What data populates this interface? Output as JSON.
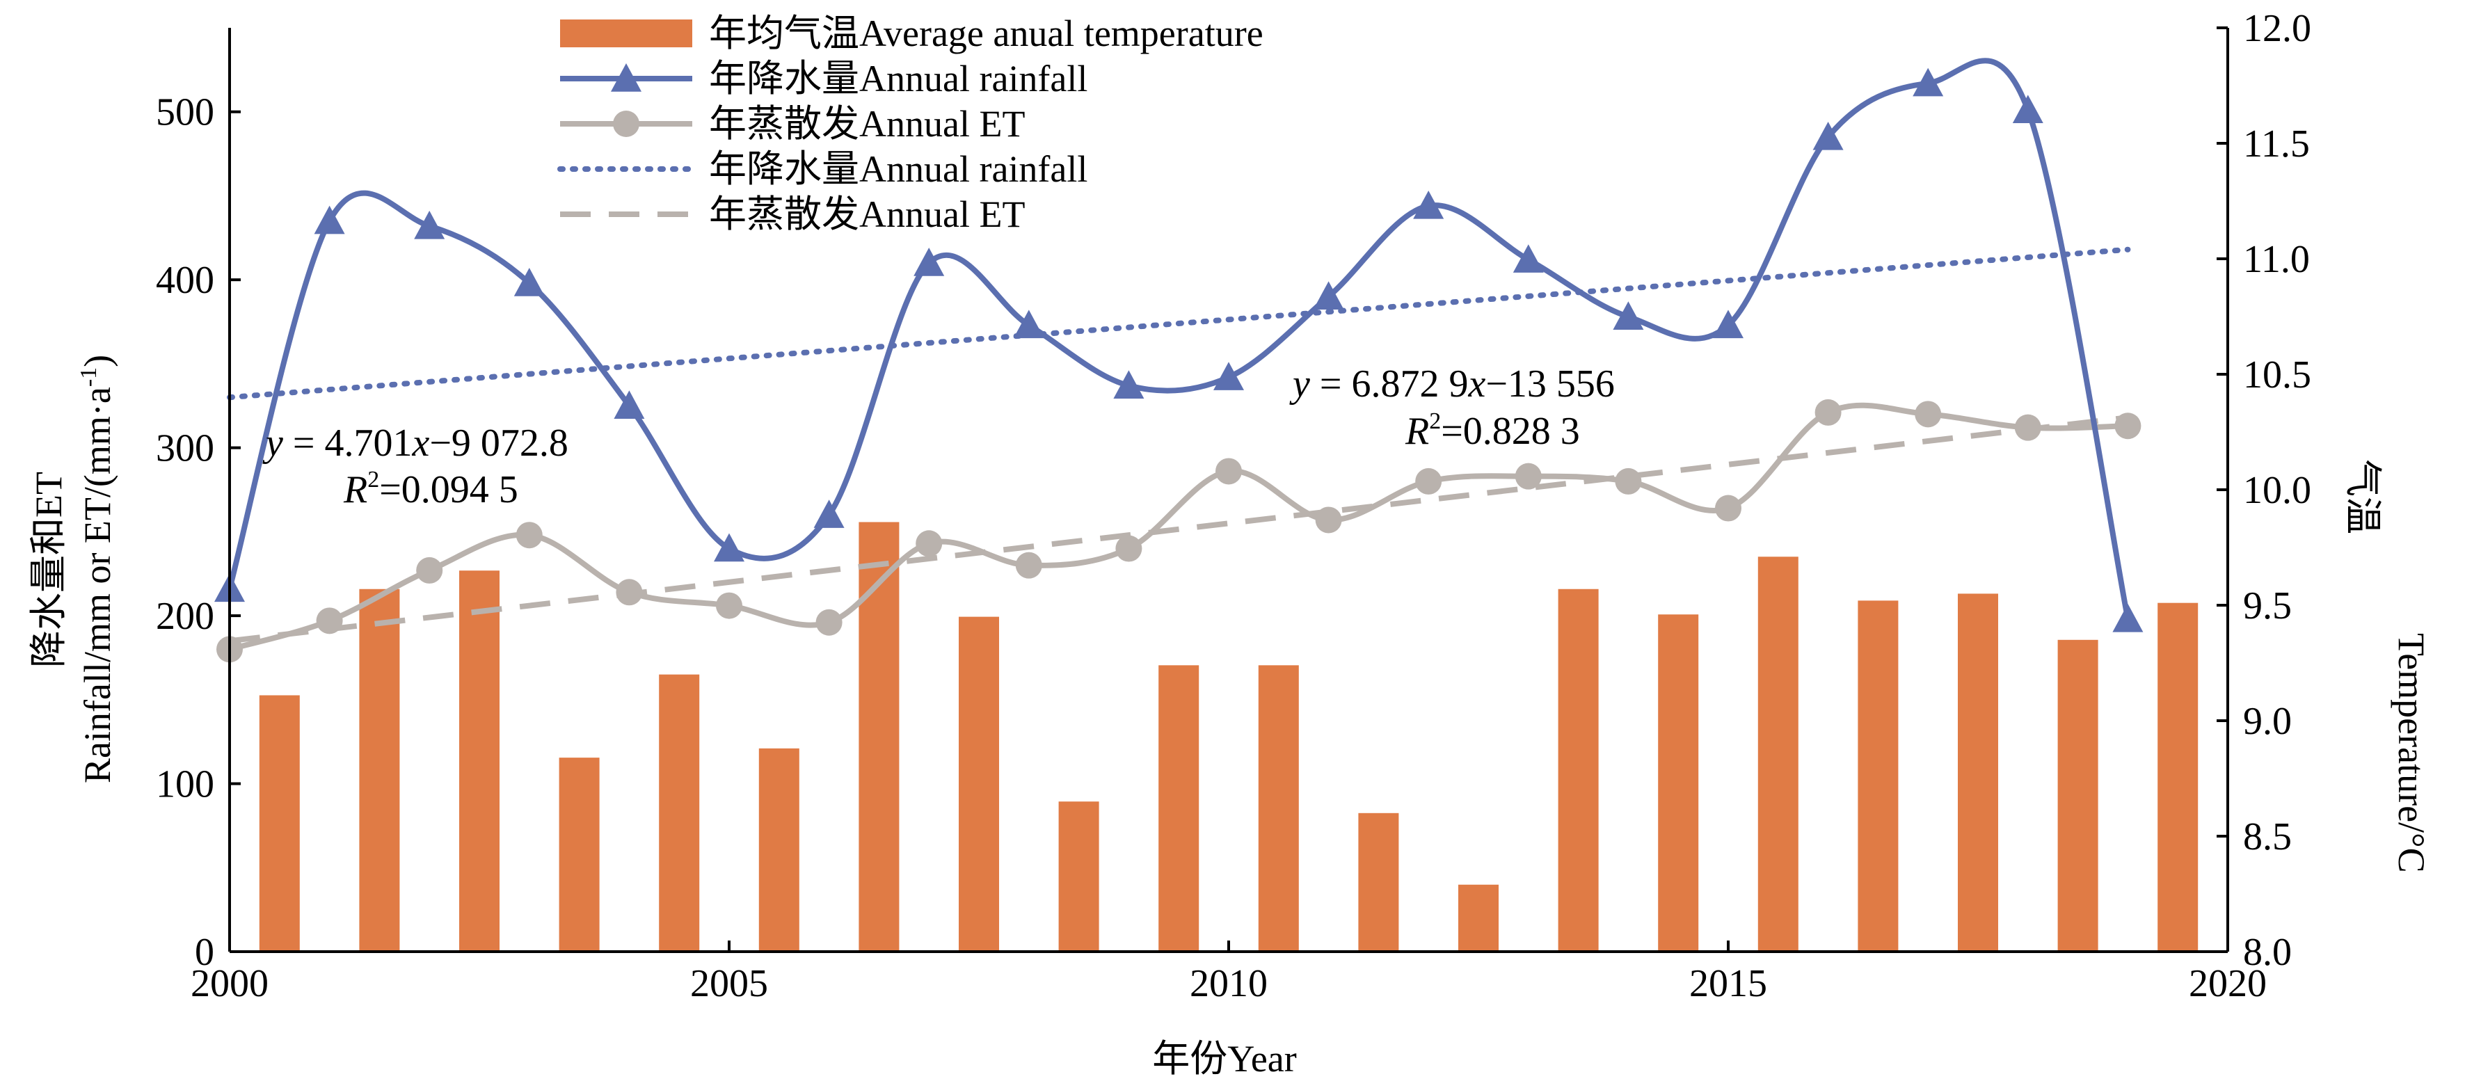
{
  "chart_data": {
    "type": "bar+line",
    "x_label": "年份Year",
    "y_left_label_cn": "降水量和ET",
    "y_left_label_en": "Rainfall/mm or ET/(mm·a",
    "y_left_label_sup": "-1",
    "y_left_label_end": ")",
    "y_right_label_cn": "气温",
    "y_right_label_en": "Temperature/°C",
    "x_range": [
      2000,
      2020
    ],
    "x_ticks": [
      "2000",
      "2005",
      "2010",
      "2015",
      "2020"
    ],
    "y_left_range": [
      0,
      550
    ],
    "y_left_ticks": [
      "0",
      "100",
      "200",
      "300",
      "400",
      "500"
    ],
    "y_right_range": [
      8.0,
      12.0
    ],
    "y_right_ticks": [
      "8.0",
      "8.5",
      "9.0",
      "9.5",
      "10.0",
      "10.5",
      "11.0",
      "11.5",
      "12.0"
    ],
    "years": [
      2000,
      2001,
      2002,
      2003,
      2004,
      2005,
      2006,
      2007,
      2008,
      2009,
      2010,
      2011,
      2012,
      2013,
      2014,
      2015,
      2016,
      2017,
      2018,
      2019
    ],
    "temperature": [
      9.11,
      9.57,
      9.65,
      8.84,
      9.2,
      8.88,
      9.86,
      9.45,
      8.65,
      9.24,
      9.24,
      8.6,
      8.29,
      9.57,
      9.46,
      9.71,
      9.52,
      9.55,
      9.35,
      9.51
    ],
    "rainfall": [
      216,
      435,
      432,
      398,
      325,
      240,
      260,
      410,
      373,
      337,
      342,
      390,
      444,
      412,
      378,
      373,
      485,
      517,
      501,
      198
    ],
    "et": [
      180,
      197,
      227,
      248,
      214,
      206,
      196,
      243,
      230,
      240,
      286,
      257,
      280,
      283,
      280,
      264,
      321,
      320,
      312,
      313
    ],
    "rainfall_trend": [
      330,
      418
    ],
    "et_trend": [
      185,
      318
    ],
    "legend": [
      {
        "label": "年均气温Average anual temperature",
        "kind": "bar"
      },
      {
        "label": "年降水量Annual rainfall",
        "kind": "line-triangle"
      },
      {
        "label": "年蒸散发Annual ET",
        "kind": "line-circle"
      },
      {
        "label": "年降水量Annual rainfall",
        "kind": "dotted"
      },
      {
        "label": "年蒸散发Annual ET",
        "kind": "dashed"
      }
    ],
    "annotations": {
      "rainfall_eq_prefix": "y",
      "rainfall_eq_a": " = 4.701",
      "rainfall_eq_x": "x",
      "rainfall_eq_b": "−9 072.8",
      "rainfall_r2_r": "R",
      "rainfall_r2_sup": "2",
      "rainfall_r2_val": "=0.094 5",
      "et_eq_prefix": "y",
      "et_eq_a": " = 6.872 9",
      "et_eq_x": "x",
      "et_eq_b": "−13 556",
      "et_r2_r": "R",
      "et_r2_sup": "2",
      "et_r2_val": "=0.828 3"
    },
    "colors": {
      "bar": "#e07b45",
      "rainfall": "#5b6fb0",
      "et": "#b9b2ad"
    }
  }
}
